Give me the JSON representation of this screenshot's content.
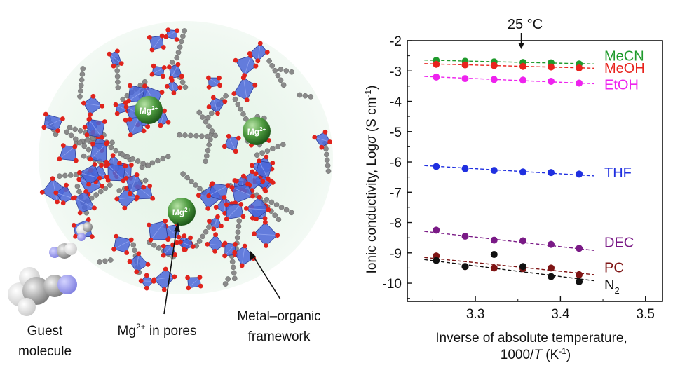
{
  "illustration": {
    "labels": {
      "guest_line1": "Guest",
      "guest_line2": "molecule",
      "pores_base": "Mg",
      "pores_sup": "2+",
      "pores_rest": " in pores",
      "framework_line1": "Metal–organic",
      "framework_line2": "framework"
    },
    "ion_badge_base": "Mg",
    "ion_badge_sup": "2+",
    "colors": {
      "polyhedra": "#4a66d8",
      "oxygen": "#e0231c",
      "carbon": "#8a8a8a",
      "pore_glow": "#cfe9d4",
      "ion": "#3f8f3a"
    }
  },
  "chart_data": {
    "type": "scatter",
    "annotation_temp": "25 °C",
    "annotation_x": 3.354,
    "xlim": [
      3.22,
      3.52
    ],
    "ylim": [
      -10.6,
      -2.0
    ],
    "x_ticks": [
      3.3,
      3.4,
      3.5
    ],
    "x_tick_labels": [
      "3.3",
      "3.4",
      "3.5"
    ],
    "y_ticks": [
      -2,
      -3,
      -4,
      -5,
      -6,
      -7,
      -8,
      -9,
      -10
    ],
    "y_tick_labels": [
      "-2",
      "-3",
      "-4",
      "-5",
      "-6",
      "-7",
      "-8",
      "-9",
      "-10"
    ],
    "xlabel_line1": "Inverse of absolute temperature,",
    "xlabel_line2_pre": "1000/",
    "xlabel_line2_var": "T",
    "xlabel_line2_unit": "  (K",
    "xlabel_line2_exp": "-1",
    "xlabel_line2_end": ")",
    "ylabel_pre": "Ionic conductivity, Log",
    "ylabel_sigma": "σ",
    "ylabel_unit": " (S cm",
    "ylabel_exp": "-1",
    "ylabel_end": ")",
    "x": [
      3.254,
      3.288,
      3.322,
      3.356,
      3.389,
      3.422
    ],
    "series": [
      {
        "name": "MeCN",
        "color": "#1f9a2c",
        "values": [
          -2.65,
          -2.68,
          -2.7,
          -2.72,
          -2.73,
          -2.77
        ],
        "fit": [
          [
            3.24,
            -2.64
          ],
          [
            3.44,
            -2.77
          ]
        ]
      },
      {
        "name": "MeOH",
        "color": "#e8231d",
        "values": [
          -2.78,
          -2.8,
          -2.82,
          -2.85,
          -2.87,
          -2.9
        ],
        "fit": [
          [
            3.24,
            -2.76
          ],
          [
            3.44,
            -2.91
          ]
        ]
      },
      {
        "name": "EtOH",
        "color": "#ee22ee",
        "values": [
          -3.2,
          -3.25,
          -3.28,
          -3.3,
          -3.34,
          -3.4
        ],
        "fit": [
          [
            3.24,
            -3.18
          ],
          [
            3.44,
            -3.42
          ]
        ]
      },
      {
        "name": "THF",
        "color": "#1f2fe0",
        "values": [
          -6.15,
          -6.22,
          -6.28,
          -6.33,
          -6.35,
          -6.4
        ],
        "fit": [
          [
            3.24,
            -6.12
          ],
          [
            3.44,
            -6.46
          ]
        ]
      },
      {
        "name": "DEC",
        "color": "#7a1a86",
        "values": [
          -8.25,
          -8.45,
          -8.58,
          -8.6,
          -8.72,
          -8.85
        ],
        "fit": [
          [
            3.24,
            -8.29
          ],
          [
            3.44,
            -8.92
          ]
        ]
      },
      {
        "name": "PC",
        "color": "#7f1515",
        "values": [
          -9.1,
          -9.45,
          -9.5,
          -9.52,
          -9.5,
          -9.72
        ],
        "fit": [
          [
            3.24,
            -9.15
          ],
          [
            3.44,
            -9.72
          ]
        ]
      },
      {
        "name": "N",
        "name_sub": "2",
        "color": "#111111",
        "values": [
          -9.25,
          -9.45,
          -9.05,
          -9.45,
          -9.78,
          -9.95
        ],
        "fit": [
          [
            3.24,
            -9.22
          ],
          [
            3.44,
            -9.92
          ]
        ]
      }
    ],
    "legend_y": {
      "MeCN": -2.5,
      "MeOH": -2.9,
      "EtOH": -3.45,
      "THF": -6.35,
      "DEC": -8.65,
      "PC": -9.48,
      "N": -10.05
    }
  }
}
